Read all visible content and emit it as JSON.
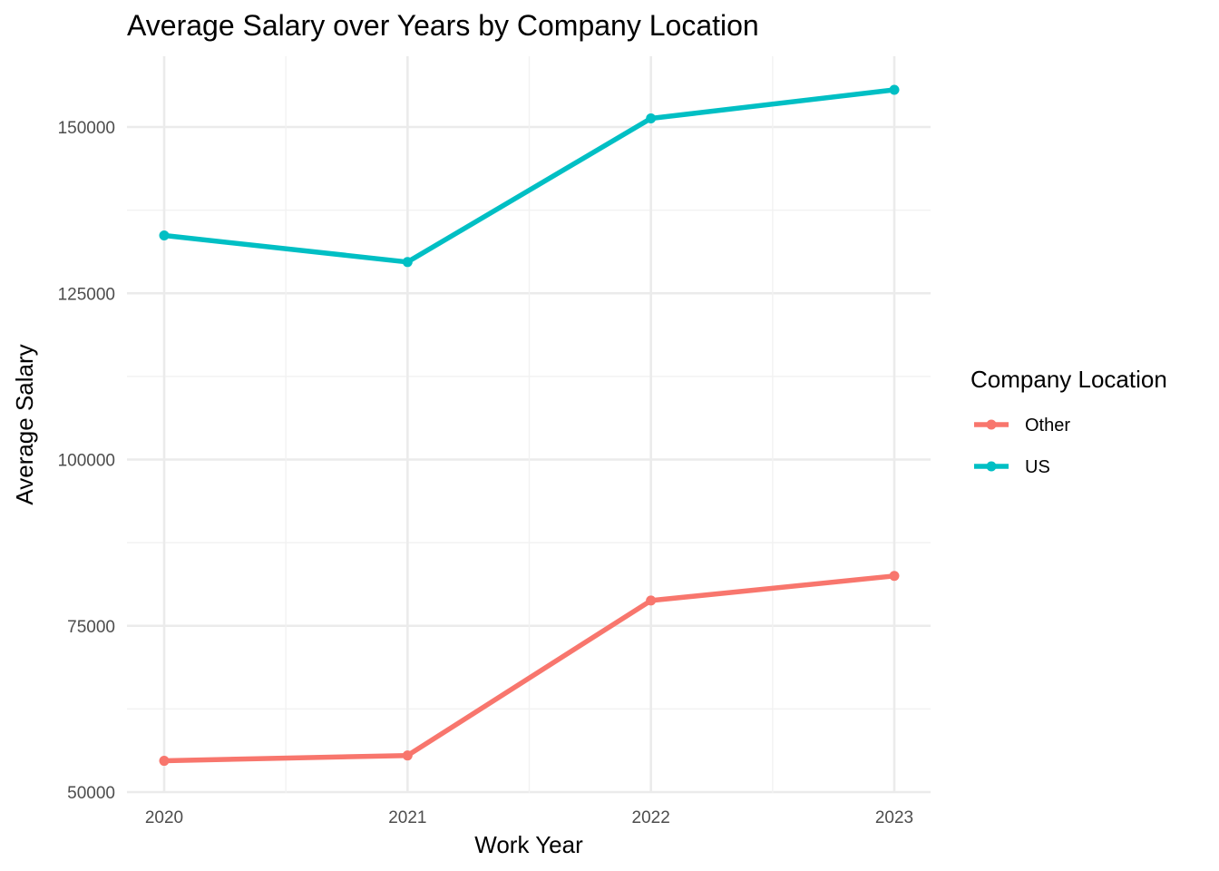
{
  "chart_data": {
    "type": "line",
    "title": "Average Salary over Years by Company Location",
    "xlabel": "Work Year",
    "ylabel": "Average Salary",
    "x": [
      "2020",
      "2021",
      "2022",
      "2023"
    ],
    "y_ticks": [
      "50000",
      "75000",
      "100000",
      "125000",
      "150000"
    ],
    "ylim": [
      50000,
      160000
    ],
    "grid": true,
    "legend": {
      "title": "Company Location",
      "placement": "right"
    },
    "series": [
      {
        "name": "Other",
        "color": "#F8766D",
        "values": [
          54700,
          55500,
          78800,
          82500
        ]
      },
      {
        "name": "US",
        "color": "#00BFC4",
        "values": [
          133700,
          129700,
          151300,
          155600
        ]
      }
    ]
  }
}
